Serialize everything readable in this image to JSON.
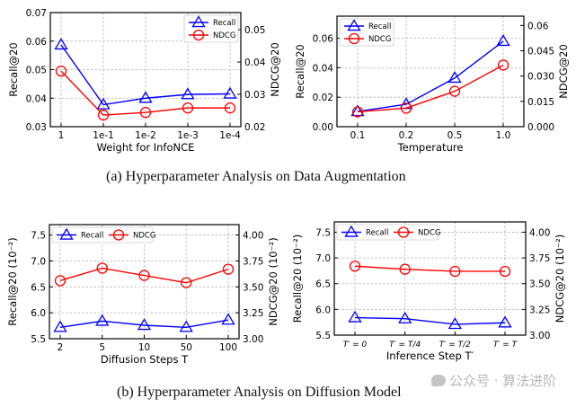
{
  "chart_data": [
    {
      "id": "c1",
      "type": "line",
      "title": "",
      "xlabel": "Weight for InfoNCE",
      "ylabel": "Recall@20",
      "ylabel_right": "NDCG@20",
      "categories": [
        "1",
        "1e-1",
        "1e-2",
        "1e-3",
        "1e-4"
      ],
      "ylim": [
        0.03,
        0.07
      ],
      "yticks": [
        "0.03",
        "0.04",
        "0.05",
        "0.06",
        "0.07"
      ],
      "yticks_values": [
        0.03,
        0.04,
        0.05,
        0.06,
        0.07
      ],
      "ylim_right": [
        0.02,
        0.0553
      ],
      "yticks_right": [
        "0.02",
        "0.03",
        "0.04",
        "0.05"
      ],
      "yticks_right_values": [
        0.02,
        0.03,
        0.04,
        0.05
      ],
      "grid": true,
      "legend": "top-right",
      "legend_layout": "vertical",
      "series": [
        {
          "name": "Recall",
          "axis": "left",
          "color": "#0000ff",
          "marker": "triangle",
          "values": [
            0.0587,
            0.0377,
            0.04,
            0.0413,
            0.0415
          ]
        },
        {
          "name": "NDCG",
          "axis": "right",
          "color": "#ff0000",
          "marker": "circle",
          "values": [
            0.0372,
            0.0236,
            0.0244,
            0.0258,
            0.0258
          ]
        }
      ]
    },
    {
      "id": "c2",
      "type": "line",
      "title": "",
      "xlabel": "Temperature",
      "ylabel": "Recall@20",
      "ylabel_right": "NDCG@20",
      "categories": [
        "0.1",
        "0.2",
        "0.5",
        "1.0"
      ],
      "ylim": [
        0.0,
        0.075
      ],
      "yticks": [
        "0.00",
        "0.02",
        "0.04",
        "0.06"
      ],
      "yticks_values": [
        0.0,
        0.02,
        0.04,
        0.06
      ],
      "ylim_right": [
        0.0,
        0.0655
      ],
      "yticks_right": [
        "0.000",
        "0.015",
        "0.030",
        "0.045",
        "0.06"
      ],
      "yticks_right_values": [
        0.0,
        0.015,
        0.03,
        0.045,
        0.06
      ],
      "grid": true,
      "legend": "top-left",
      "legend_layout": "vertical",
      "series": [
        {
          "name": "Recall",
          "axis": "left",
          "color": "#0000ff",
          "marker": "triangle",
          "values": [
            0.0103,
            0.0152,
            0.033,
            0.058
          ]
        },
        {
          "name": "NDCG",
          "axis": "right",
          "color": "#ff0000",
          "marker": "circle",
          "values": [
            0.0088,
            0.011,
            0.021,
            0.0365
          ]
        }
      ]
    },
    {
      "id": "c3",
      "type": "line",
      "title": "",
      "xlabel": "Diffusion Steps T",
      "ylabel": "Recall@20 (10⁻²)",
      "ylabel_right": "NDCG@20 (10⁻²)",
      "categories": [
        "2",
        "5",
        "10",
        "50",
        "100"
      ],
      "ylim": [
        5.5,
        7.7
      ],
      "yticks": [
        "5.5",
        "6.0",
        "6.5",
        "7.0",
        "7.5"
      ],
      "yticks_values": [
        5.5,
        6.0,
        6.5,
        7.0,
        7.5
      ],
      "ylim_right": [
        3.0,
        4.1
      ],
      "yticks_right": [
        "3.00",
        "3.25",
        "3.50",
        "3.75",
        "4.00"
      ],
      "yticks_right_values": [
        3.0,
        3.25,
        3.5,
        3.75,
        4.0
      ],
      "grid": true,
      "legend": "top-left",
      "legend_layout": "horizontal",
      "series": [
        {
          "name": "Recall",
          "axis": "left",
          "color": "#0000ff",
          "marker": "triangle",
          "values": [
            5.72,
            5.84,
            5.76,
            5.72,
            5.86
          ]
        },
        {
          "name": "NDCG",
          "axis": "right",
          "color": "#ff0000",
          "marker": "circle",
          "values": [
            3.56,
            3.68,
            3.61,
            3.54,
            3.67
          ]
        }
      ]
    },
    {
      "id": "c4",
      "type": "line",
      "title": "",
      "xlabel": "Inference Step T′",
      "ylabel": "Recall@20 (10⁻²)",
      "ylabel_right": "NDCG@20 (10⁻²)",
      "categories": [
        "T′ = 0",
        "T′ = T/4",
        "T′ = T/2",
        "T′ = T"
      ],
      "ylim": [
        5.5,
        7.7
      ],
      "yticks": [
        "5.5",
        "6.0",
        "6.5",
        "7.0",
        "7.5"
      ],
      "yticks_values": [
        5.5,
        6.0,
        6.5,
        7.0,
        7.5
      ],
      "ylim_right": [
        3.0,
        4.1
      ],
      "yticks_right": [
        "3.00",
        "3.25",
        "3.50",
        "3.75",
        "4.00"
      ],
      "yticks_right_values": [
        3.0,
        3.25,
        3.5,
        3.75,
        4.0
      ],
      "grid": true,
      "legend": "top-left",
      "legend_layout": "horizontal",
      "series": [
        {
          "name": "Recall",
          "axis": "left",
          "color": "#0000ff",
          "marker": "triangle",
          "values": [
            5.84,
            5.82,
            5.71,
            5.74
          ]
        },
        {
          "name": "NDCG",
          "axis": "right",
          "color": "#ff0000",
          "marker": "circle",
          "values": [
            3.67,
            3.64,
            3.62,
            3.62
          ]
        }
      ]
    }
  ],
  "captions": {
    "a": "(a)  Hyperparameter Analysis on Data Augmentation",
    "b": "(b)  Hyperparameter Analysis on Diffusion Model"
  },
  "watermark": "公众号 · 算法进阶"
}
